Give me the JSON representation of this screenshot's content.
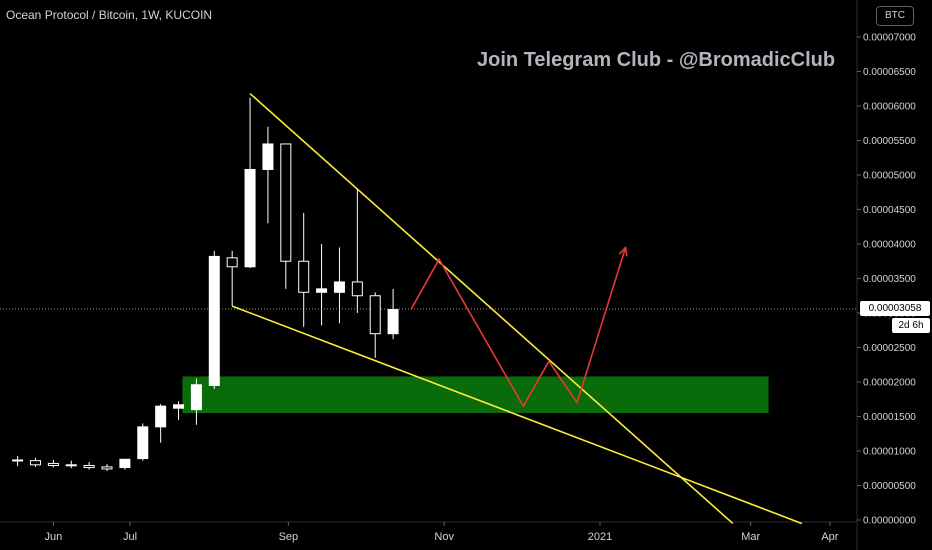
{
  "header": {
    "title": "Ocean Protocol / Bitcoin, 1W, KUCOIN",
    "watermark": "Join Telegram Club - @BromadicClub",
    "currency": "BTC"
  },
  "price_tag": {
    "value": "0.00003058",
    "countdown": "2d 6h"
  },
  "colors": {
    "background": "#000000",
    "candle": "#ffffff",
    "trendline": "#ffeb3b",
    "projection": "#e53935",
    "zone": "#0a6b0a"
  },
  "chart_data": {
    "type": "candlestick",
    "title": "Ocean Protocol / Bitcoin, 1W, KUCOIN",
    "y_ticks": [
      "0.00007000",
      "0.00006500",
      "0.00006000",
      "0.00005500",
      "0.00005000",
      "0.00004500",
      "0.00004000",
      "0.00003500",
      "0.00003000",
      "0.00002500",
      "0.00002000",
      "0.00001500",
      "0.00001000",
      "0.00000500",
      "0.00000000"
    ],
    "y_tick_values": [
      7e-05,
      6.5e-05,
      6e-05,
      5.5e-05,
      5e-05,
      4.5e-05,
      4e-05,
      3.5e-05,
      3e-05,
      2.5e-05,
      2e-05,
      1.5e-05,
      1e-05,
      5e-06,
      0
    ],
    "ylim": [
      -1e-07,
      7.25e-05
    ],
    "x_ticks": [
      {
        "label": "Jun",
        "x": "2020-06-01"
      },
      {
        "label": "Jul",
        "x": "2020-07-01"
      },
      {
        "label": "Sep",
        "x": "2020-09-01"
      },
      {
        "label": "Nov",
        "x": "2020-11-01"
      },
      {
        "label": "2021",
        "x": "2021-01-01"
      },
      {
        "label": "Mar",
        "x": "2021-03-01"
      },
      {
        "label": "Apr",
        "x": "2021-04-01"
      }
    ],
    "candles": [
      {
        "t": "2020-05-18",
        "o": 8.7e-06,
        "h": 9.3e-06,
        "l": 7.8e-06,
        "c": 8.6e-06
      },
      {
        "t": "2020-05-25",
        "o": 8.6e-06,
        "h": 9e-06,
        "l": 7.7e-06,
        "c": 8e-06
      },
      {
        "t": "2020-06-01",
        "o": 8.2e-06,
        "h": 8.7e-06,
        "l": 7.6e-06,
        "c": 7.9e-06
      },
      {
        "t": "2020-06-08",
        "o": 8e-06,
        "h": 8.6e-06,
        "l": 7.5e-06,
        "c": 8e-06
      },
      {
        "t": "2020-06-15",
        "o": 7.9e-06,
        "h": 8.4e-06,
        "l": 7.3e-06,
        "c": 7.6e-06
      },
      {
        "t": "2020-06-22",
        "o": 7.7e-06,
        "h": 8.1e-06,
        "l": 7.1e-06,
        "c": 7.4e-06
      },
      {
        "t": "2020-06-29",
        "o": 7.6e-06,
        "h": 8.8e-06,
        "l": 7.3e-06,
        "c": 8.8e-06
      },
      {
        "t": "2020-07-06",
        "o": 8.9e-06,
        "h": 1.4e-05,
        "l": 8.6e-06,
        "c": 1.35e-05
      },
      {
        "t": "2020-07-13",
        "o": 1.35e-05,
        "h": 1.68e-05,
        "l": 1.12e-05,
        "c": 1.65e-05
      },
      {
        "t": "2020-07-20",
        "o": 1.62e-05,
        "h": 1.72e-05,
        "l": 1.45e-05,
        "c": 1.67e-05
      },
      {
        "t": "2020-07-27",
        "o": 1.6e-05,
        "h": 2.05e-05,
        "l": 1.38e-05,
        "c": 1.96e-05
      },
      {
        "t": "2020-08-03",
        "o": 1.95e-05,
        "h": 3.9e-05,
        "l": 1.9e-05,
        "c": 3.82e-05
      },
      {
        "t": "2020-08-10",
        "o": 3.8e-05,
        "h": 3.9e-05,
        "l": 3.1e-05,
        "c": 3.67e-05
      },
      {
        "t": "2020-08-17",
        "o": 3.67e-05,
        "h": 6.12e-05,
        "l": 3.65e-05,
        "c": 5.08e-05
      },
      {
        "t": "2020-08-24",
        "o": 5.08e-05,
        "h": 5.7e-05,
        "l": 4.3e-05,
        "c": 5.45e-05
      },
      {
        "t": "2020-08-31",
        "o": 5.45e-05,
        "h": 5.45e-05,
        "l": 3.35e-05,
        "c": 3.75e-05
      },
      {
        "t": "2020-09-07",
        "o": 3.75e-05,
        "h": 4.45e-05,
        "l": 2.8e-05,
        "c": 3.3e-05
      },
      {
        "t": "2020-09-14",
        "o": 3.3e-05,
        "h": 4e-05,
        "l": 2.82e-05,
        "c": 3.35e-05
      },
      {
        "t": "2020-09-21",
        "o": 3.3e-05,
        "h": 3.95e-05,
        "l": 2.85e-05,
        "c": 3.45e-05
      },
      {
        "t": "2020-09-28",
        "o": 3.45e-05,
        "h": 4.8e-05,
        "l": 3e-05,
        "c": 3.25e-05
      },
      {
        "t": "2020-10-05",
        "o": 3.25e-05,
        "h": 3.3e-05,
        "l": 2.35e-05,
        "c": 2.7e-05
      },
      {
        "t": "2020-10-12",
        "o": 2.7e-05,
        "h": 3.35e-05,
        "l": 2.62e-05,
        "c": 3.05e-05
      }
    ],
    "zone": {
      "t_start": "2020-07-27",
      "t_end": "2021-03-08",
      "low": 1.55e-05,
      "high": 2.08e-05
    },
    "trendlines": [
      {
        "t1": "2020-08-17",
        "p1": 6.18e-05,
        "t2": "2021-02-22",
        "p2": -5e-07
      },
      {
        "t1": "2020-08-10",
        "p1": 3.1e-05,
        "t2": "2021-03-21",
        "p2": -5e-07
      }
    ],
    "projection": [
      {
        "t": "2020-10-19",
        "p": 3.05e-05
      },
      {
        "t": "2020-10-30",
        "p": 3.78e-05
      },
      {
        "t": "2020-12-02",
        "p": 1.65e-05
      },
      {
        "t": "2020-12-12",
        "p": 2.3e-05
      },
      {
        "t": "2020-12-23",
        "p": 1.7e-05
      },
      {
        "t": "2021-01-11",
        "p": 3.95e-05
      }
    ],
    "current_price": 3.058e-05
  }
}
